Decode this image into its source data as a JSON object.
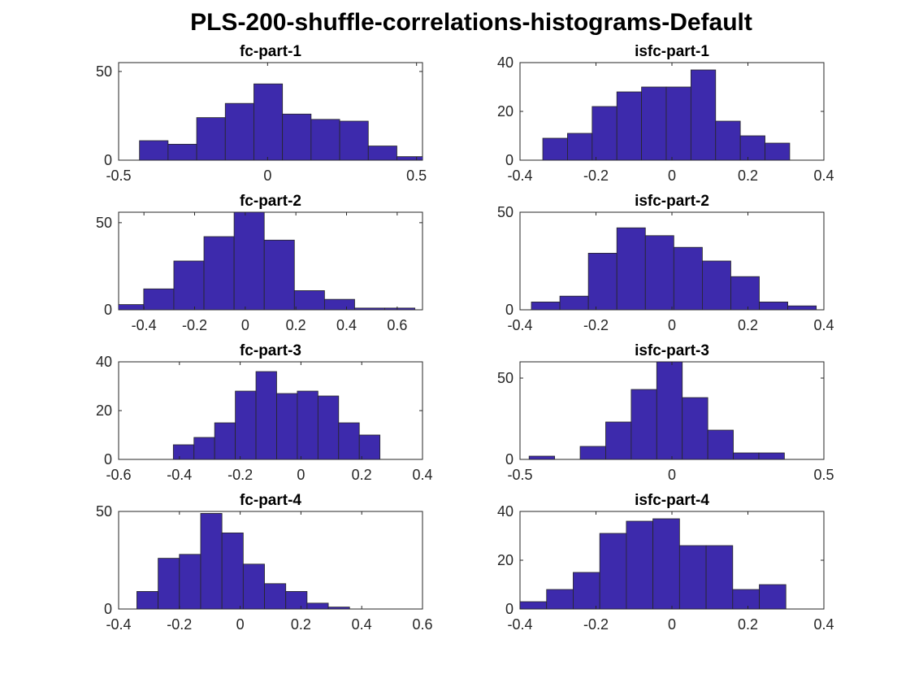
{
  "figure": {
    "title": "PLS-200-shuffle-correlations-histograms-Default",
    "bar_color": "#3d2aac",
    "edge_color": "#262626"
  },
  "chart_data": [
    {
      "type": "bar",
      "title": "fc-part-1",
      "xlim": [
        -0.5,
        0.52
      ],
      "ylim": [
        0,
        55
      ],
      "xticks": [
        -0.5,
        0,
        0.5
      ],
      "xtick_labels": [
        "-0.5",
        "0",
        "0.5"
      ],
      "yticks": [
        0,
        50
      ],
      "ytick_labels": [
        "0",
        "50"
      ],
      "bin_edges": [
        -0.43,
        -0.334,
        -0.238,
        -0.142,
        -0.046,
        0.05,
        0.146,
        0.242,
        0.338,
        0.434,
        0.53
      ],
      "counts": [
        11,
        9,
        24,
        32,
        43,
        26,
        23,
        22,
        8,
        2
      ]
    },
    {
      "type": "bar",
      "title": "isfc-part-1",
      "xlim": [
        -0.4,
        0.4
      ],
      "ylim": [
        0,
        40
      ],
      "xticks": [
        -0.4,
        -0.2,
        0,
        0.2,
        0.4
      ],
      "xtick_labels": [
        "-0.4",
        "-0.2",
        "0",
        "0.2",
        "0.4"
      ],
      "yticks": [
        0,
        20,
        40
      ],
      "ytick_labels": [
        "0",
        "20",
        "40"
      ],
      "bin_edges": [
        -0.34,
        -0.275,
        -0.21,
        -0.145,
        -0.08,
        -0.015,
        0.05,
        0.115,
        0.18,
        0.245,
        0.31
      ],
      "counts": [
        9,
        11,
        22,
        28,
        30,
        30,
        37,
        16,
        10,
        7
      ]
    },
    {
      "type": "bar",
      "title": "fc-part-2",
      "xlim": [
        -0.5,
        0.7
      ],
      "ylim": [
        0,
        56
      ],
      "xticks": [
        -0.4,
        -0.2,
        0,
        0.2,
        0.4,
        0.6
      ],
      "xtick_labels": [
        "-0.4",
        "-0.2",
        "0",
        "0.2",
        "0.4",
        "0.6"
      ],
      "yticks": [
        0,
        50
      ],
      "ytick_labels": [
        "0",
        "50"
      ],
      "bin_edges": [
        -0.52,
        -0.401,
        -0.282,
        -0.163,
        -0.044,
        0.075,
        0.194,
        0.313,
        0.432,
        0.551,
        0.67,
        0.789
      ],
      "counts": [
        3,
        12,
        28,
        42,
        56,
        40,
        11,
        6,
        1,
        1,
        0
      ]
    },
    {
      "type": "bar",
      "title": "isfc-part-2",
      "xlim": [
        -0.4,
        0.4
      ],
      "ylim": [
        0,
        50
      ],
      "xticks": [
        -0.4,
        -0.2,
        0,
        0.2,
        0.4
      ],
      "xtick_labels": [
        "-0.4",
        "-0.2",
        "0",
        "0.2",
        "0.4"
      ],
      "yticks": [
        0,
        50
      ],
      "ytick_labels": [
        "0",
        "50"
      ],
      "bin_edges": [
        -0.37,
        -0.295,
        -0.22,
        -0.145,
        -0.07,
        0.005,
        0.08,
        0.155,
        0.23,
        0.305,
        0.38
      ],
      "counts": [
        4,
        7,
        29,
        42,
        38,
        32,
        25,
        17,
        4,
        2
      ]
    },
    {
      "type": "bar",
      "title": "fc-part-3",
      "xlim": [
        -0.6,
        0.4
      ],
      "ylim": [
        0,
        40
      ],
      "xticks": [
        -0.6,
        -0.4,
        -0.2,
        0,
        0.2,
        0.4
      ],
      "xtick_labels": [
        "-0.6",
        "-0.4",
        "-0.2",
        "0",
        "0.2",
        "0.4"
      ],
      "yticks": [
        0,
        20,
        40
      ],
      "ytick_labels": [
        "0",
        "20",
        "40"
      ],
      "bin_edges": [
        -0.42,
        -0.352,
        -0.284,
        -0.216,
        -0.148,
        -0.08,
        -0.012,
        0.056,
        0.124,
        0.192,
        0.26,
        0.328,
        0.396
      ],
      "counts": [
        6,
        9,
        15,
        28,
        36,
        27,
        28,
        26,
        15,
        10,
        0,
        0
      ]
    },
    {
      "type": "bar",
      "title": "isfc-part-3",
      "xlim": [
        -0.5,
        0.5
      ],
      "ylim": [
        0,
        60
      ],
      "xticks": [
        -0.5,
        0,
        0.5
      ],
      "xtick_labels": [
        "-0.5",
        "0",
        "0.5"
      ],
      "yticks": [
        0,
        50
      ],
      "ytick_labels": [
        "0",
        "50"
      ],
      "bin_edges": [
        -0.47,
        -0.386,
        -0.302,
        -0.218,
        -0.134,
        -0.05,
        0.034,
        0.118,
        0.202,
        0.286,
        0.37
      ],
      "counts": [
        2,
        0,
        8,
        23,
        43,
        60,
        38,
        18,
        4,
        4
      ]
    },
    {
      "type": "bar",
      "title": "fc-part-4",
      "xlim": [
        -0.4,
        0.6
      ],
      "ylim": [
        0,
        50
      ],
      "xticks": [
        -0.4,
        -0.2,
        0,
        0.2,
        0.4,
        0.6
      ],
      "xtick_labels": [
        "-0.4",
        "-0.2",
        "0",
        "0.2",
        "0.4",
        "0.6"
      ],
      "yticks": [
        0,
        50
      ],
      "ytick_labels": [
        "0",
        "50"
      ],
      "bin_edges": [
        -0.34,
        -0.27,
        -0.2,
        -0.13,
        -0.06,
        0.01,
        0.08,
        0.15,
        0.22,
        0.29,
        0.36,
        0.43
      ],
      "counts": [
        9,
        26,
        28,
        49,
        39,
        23,
        13,
        9,
        3,
        1,
        0
      ]
    },
    {
      "type": "bar",
      "title": "isfc-part-4",
      "xlim": [
        -0.4,
        0.4
      ],
      "ylim": [
        0,
        40
      ],
      "xticks": [
        -0.4,
        -0.2,
        0,
        0.2,
        0.4
      ],
      "xtick_labels": [
        "-0.4",
        "-0.2",
        "0",
        "0.2",
        "0.4"
      ],
      "yticks": [
        0,
        20,
        40
      ],
      "ytick_labels": [
        "0",
        "20",
        "40"
      ],
      "bin_edges": [
        -0.4,
        -0.33,
        -0.26,
        -0.19,
        -0.12,
        -0.05,
        0.02,
        0.09,
        0.16,
        0.23,
        0.3
      ],
      "counts": [
        3,
        8,
        15,
        31,
        36,
        37,
        26,
        26,
        8,
        10
      ]
    }
  ]
}
